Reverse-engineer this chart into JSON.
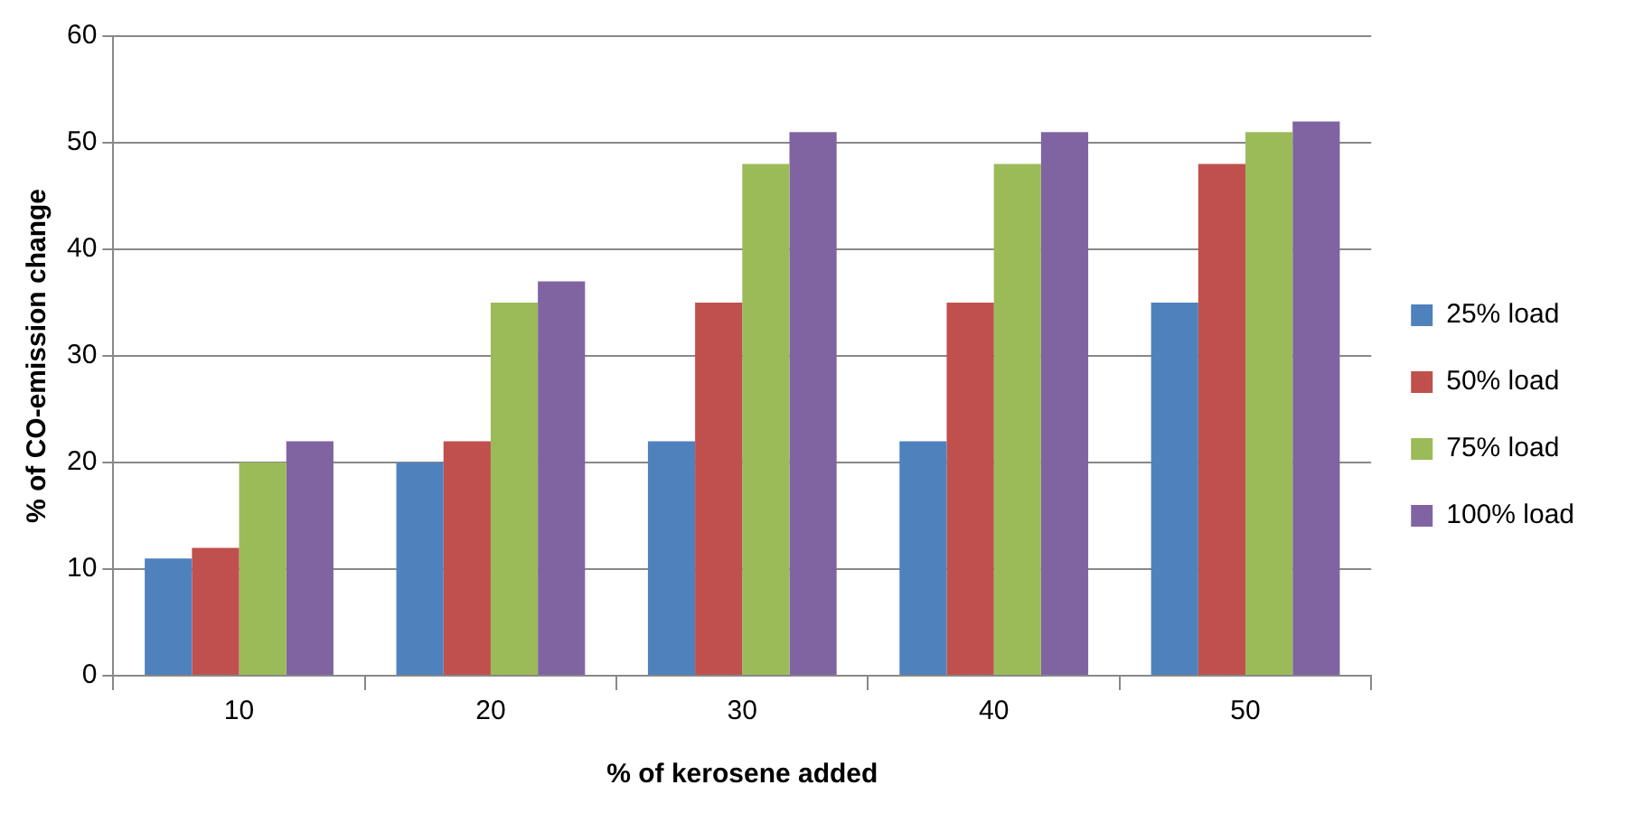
{
  "chart_data": {
    "type": "bar",
    "xlabel": "% of kerosene added",
    "ylabel": "% of CO-emission change",
    "categories": [
      "10",
      "20",
      "30",
      "40",
      "50"
    ],
    "series": [
      {
        "name": "25% load",
        "color": "#4f81bd",
        "values": [
          11,
          20,
          22,
          22,
          35
        ]
      },
      {
        "name": "50% load",
        "color": "#c0504d",
        "values": [
          12,
          22,
          35,
          35,
          48
        ]
      },
      {
        "name": "75% load",
        "color": "#9bbb59",
        "values": [
          20,
          35,
          48,
          48,
          51
        ]
      },
      {
        "name": "100% load",
        "color": "#8064a2",
        "values": [
          22,
          37,
          51,
          51,
          52
        ]
      }
    ],
    "ylim": [
      0,
      60
    ],
    "yticks": [
      0,
      10,
      20,
      30,
      40,
      50,
      60
    ],
    "grid": "y",
    "legend": "right"
  }
}
